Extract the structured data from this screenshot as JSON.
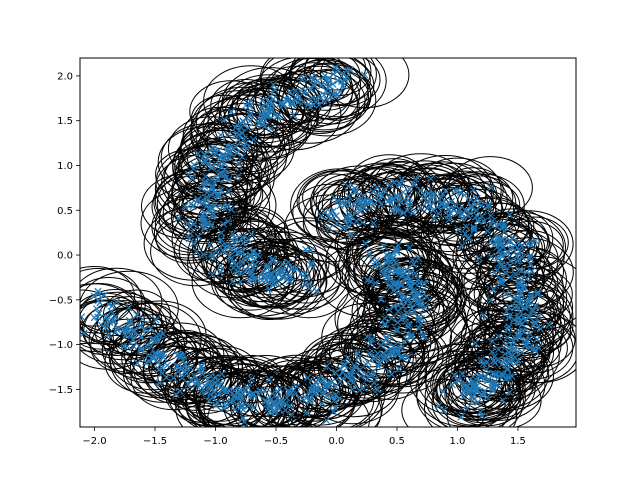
{
  "chart_data": {
    "type": "scatter",
    "title": "",
    "xlabel": "",
    "ylabel": "",
    "xlim": [
      -2.12,
      1.98
    ],
    "ylim": [
      -1.92,
      2.2
    ],
    "grid": false,
    "legend": "none",
    "x_ticks": [
      -2.0,
      -1.5,
      -1.0,
      -0.5,
      0.0,
      0.5,
      1.0,
      1.5
    ],
    "x_tick_labels": [
      "−2.0",
      "−1.5",
      "−1.0",
      "−0.5",
      "0.0",
      "0.5",
      "1.0",
      "1.5"
    ],
    "y_ticks": [
      -1.5,
      -1.0,
      -0.5,
      0.0,
      0.5,
      1.0,
      1.5,
      2.0
    ],
    "y_tick_labels": [
      "−1.5",
      "−1.0",
      "−0.5",
      "0.0",
      "0.5",
      "1.0",
      "1.5",
      "2.0"
    ],
    "series": [
      {
        "marker": "x",
        "color": "#1f77b4",
        "arms": [
          {
            "description_points": [
              [
                0.12,
                2.0
              ],
              [
                -0.2,
                1.85
              ],
              [
                -0.55,
                1.65
              ],
              [
                -0.8,
                1.35
              ],
              [
                -0.98,
                1.0
              ],
              [
                -1.05,
                0.6
              ],
              [
                -1.0,
                0.25
              ],
              [
                -0.82,
                -0.05
              ],
              [
                -0.55,
                -0.22
              ],
              [
                -0.3,
                -0.25
              ]
            ],
            "width": 0.22
          },
          {
            "description_points": [
              [
                -1.95,
                -0.5
              ],
              [
                -1.7,
                -0.85
              ],
              [
                -1.45,
                -1.15
              ],
              [
                -1.2,
                -1.4
              ],
              [
                -0.9,
                -1.55
              ],
              [
                -0.55,
                -1.62
              ],
              [
                -0.2,
                -1.55
              ],
              [
                0.1,
                -1.4
              ],
              [
                0.38,
                -1.15
              ],
              [
                0.55,
                -0.8
              ],
              [
                0.6,
                -0.45
              ],
              [
                0.5,
                -0.15
              ],
              [
                0.4,
                0.0
              ]
            ],
            "width": 0.22
          },
          {
            "description_points": [
              [
                -0.05,
                0.35
              ],
              [
                0.2,
                0.6
              ],
              [
                0.55,
                0.65
              ],
              [
                0.9,
                0.6
              ],
              [
                1.2,
                0.4
              ],
              [
                1.4,
                0.1
              ],
              [
                1.5,
                -0.25
              ],
              [
                1.55,
                -0.65
              ],
              [
                1.5,
                -1.0
              ],
              [
                1.35,
                -1.3
              ],
              [
                1.15,
                -1.5
              ],
              [
                0.98,
                -1.6
              ]
            ],
            "width": 0.22
          }
        ]
      }
    ],
    "circle_overlay": {
      "stroke": "#000000",
      "radius": 0.33
    }
  }
}
